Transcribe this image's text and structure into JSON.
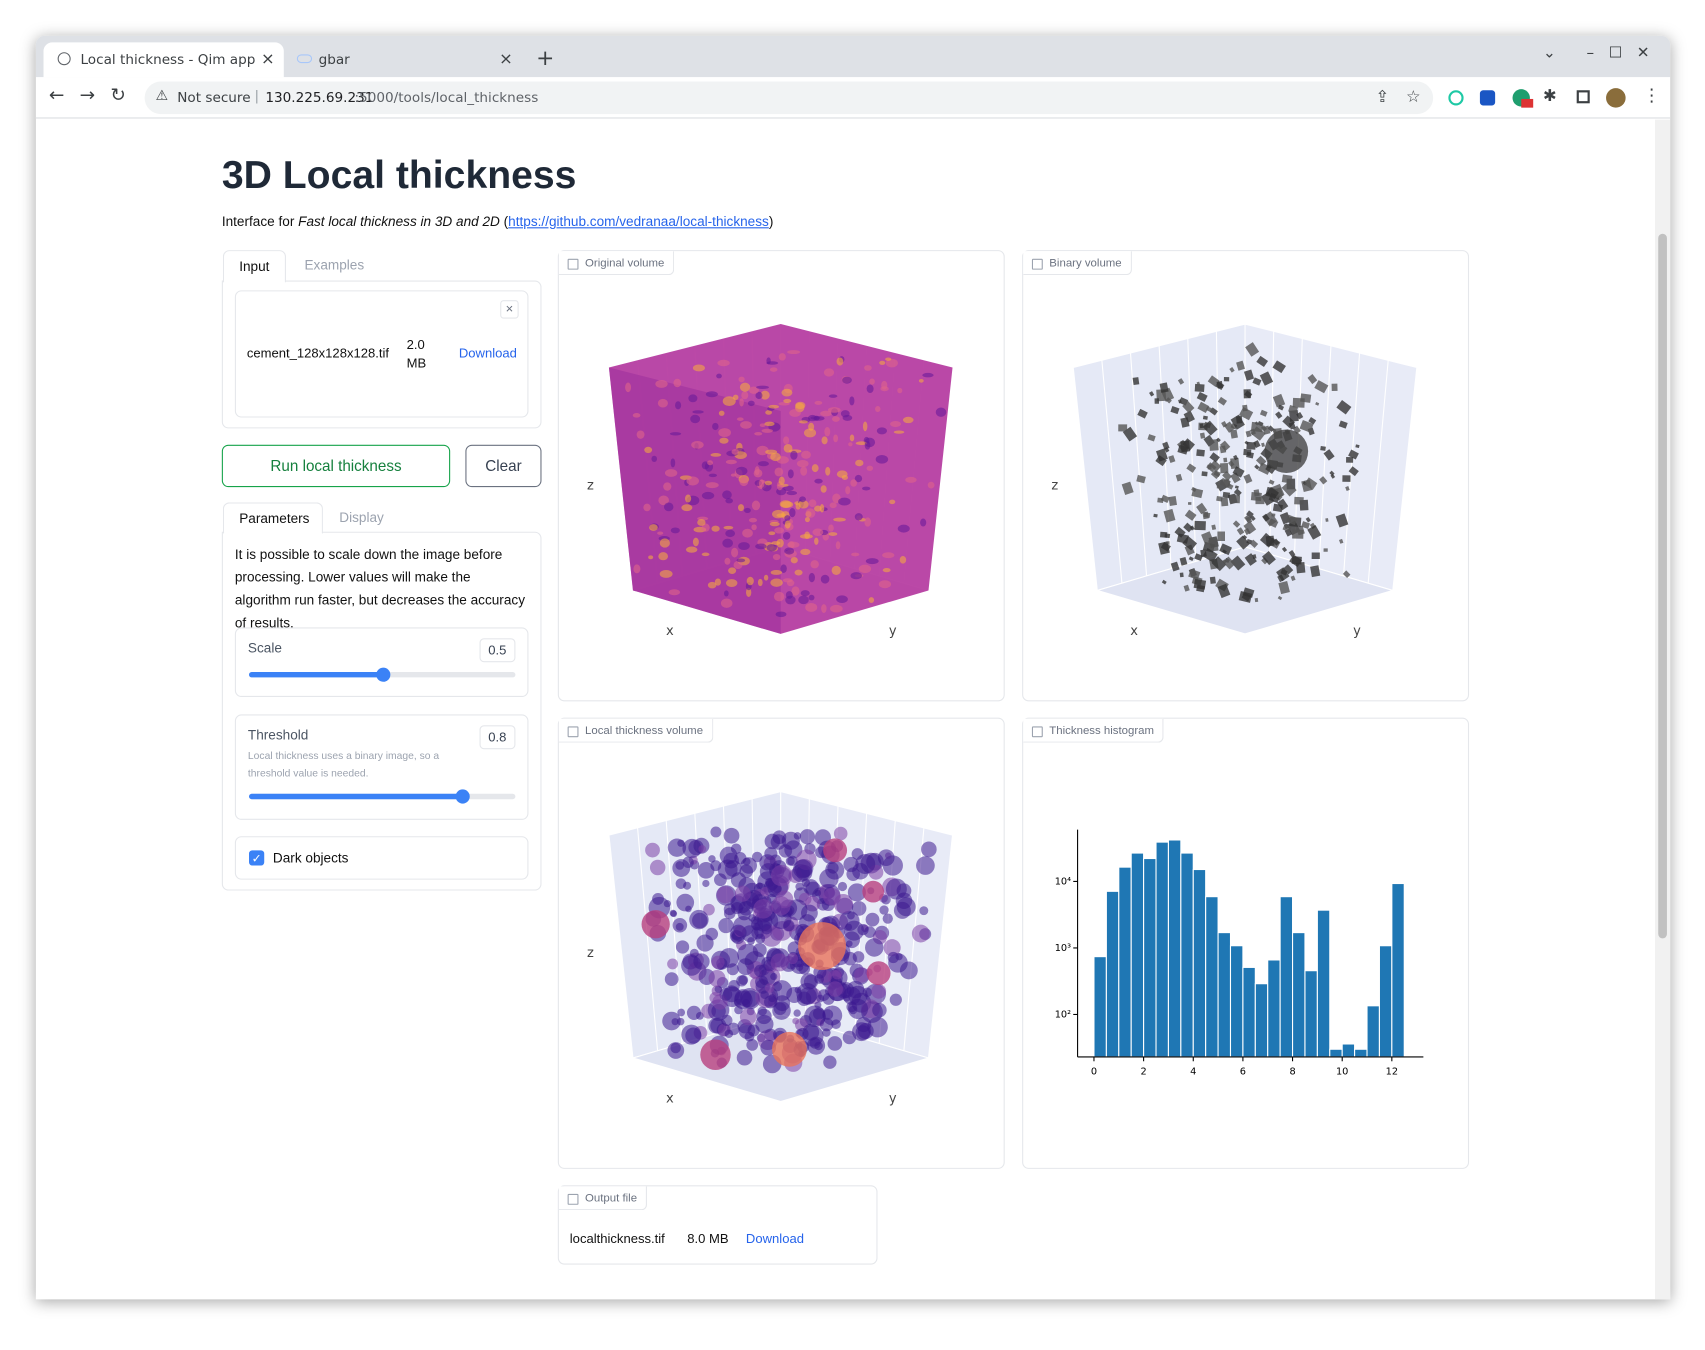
{
  "browser": {
    "tabs": [
      "Local thickness - Qim app",
      "gbar"
    ],
    "security": "Not secure",
    "url_host": "130.225.69.231",
    "url_path": ":5000/tools/local_thickness"
  },
  "page": {
    "title": "3D Local thickness",
    "intro": {
      "prefix": "Interface for ",
      "emphasis": "Fast local thickness in 3D and 2D",
      "open": " (",
      "link": "https://github.com/vedranaa/local-thickness",
      "close": ")"
    }
  },
  "input_tabs": [
    "Input",
    "Examples"
  ],
  "file": {
    "name": "cement_128x128x128.tif",
    "size": "2.0 MB",
    "action": "Download"
  },
  "buttons": {
    "run": "Run local thickness",
    "clear": "Clear"
  },
  "param_tabs": [
    "Parameters",
    "Display"
  ],
  "description": "It is possible to scale down the image before processing. Lower values will make the algorithm run faster, but decreases the accuracy of results.",
  "scale": {
    "label": "Scale",
    "value": 0.5
  },
  "threshold": {
    "label": "Threshold",
    "info": "Local thickness uses a binary image, so a threshold value is needed.",
    "value": 0.8
  },
  "dark_objects": {
    "label": "Dark objects",
    "checked": true
  },
  "plots": [
    {
      "label": "Original volume",
      "axes": [
        "x",
        "y",
        "z"
      ]
    },
    {
      "label": "Binary volume",
      "axes": [
        "x",
        "y",
        "z"
      ]
    },
    {
      "label": "Local thickness volume",
      "axes": [
        "x",
        "y",
        "z"
      ]
    }
  ],
  "histogram": {
    "type": "histogram",
    "label": "Thickness histogram",
    "bins": [
      0,
      0.5,
      1,
      1.5,
      2,
      2.5,
      3,
      3.5,
      4,
      4.5,
      5,
      5.5,
      6,
      6.5,
      7,
      7.5,
      8,
      8.5,
      9,
      9.5,
      10,
      10.5,
      11,
      11.5,
      12,
      12.5
    ],
    "values": [
      740,
      7100,
      16400,
      26700,
      22100,
      39000,
      42000,
      26700,
      15100,
      5900,
      1700,
      1080,
      510,
      290,
      660,
      5900,
      1700,
      455,
      3700,
      30,
      36,
      30,
      135,
      1080,
      9300
    ],
    "color": "#1f77b4",
    "log_y": true,
    "xlim": [
      -0.66,
      13.27
    ],
    "ylim": [
      23,
      60000
    ],
    "xticks": [
      0,
      2,
      4,
      6,
      8,
      10,
      12
    ],
    "yticks": [
      {
        "value": 100,
        "label": "10²"
      },
      {
        "value": 1000,
        "label": "10³"
      },
      {
        "value": 10000,
        "label": "10⁴"
      }
    ]
  },
  "output": {
    "label": "Output file",
    "name": "localthickness.tif",
    "size": "8.0 MB",
    "action": "Download"
  }
}
